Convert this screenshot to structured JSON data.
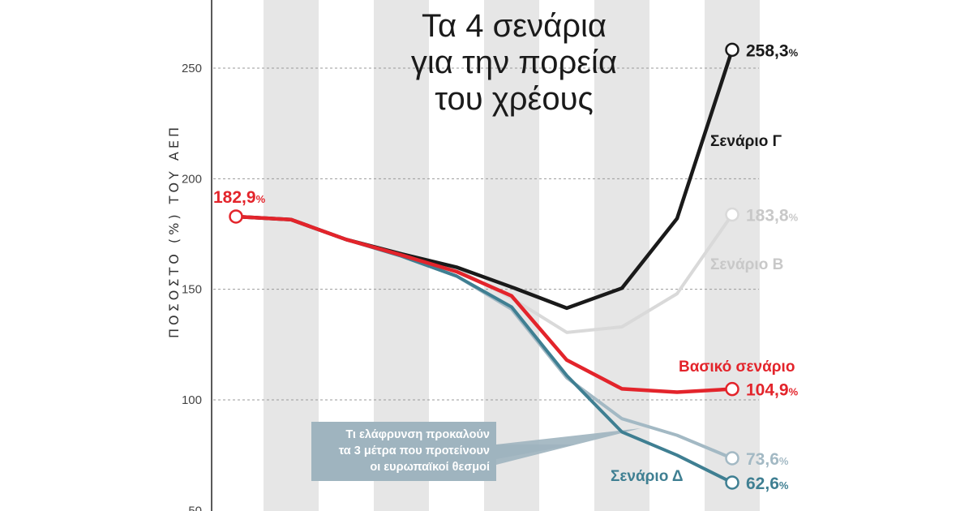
{
  "chart_data": {
    "type": "line",
    "title": [
      "Τα 4 σενάρια",
      "για την πορεία",
      "του χρέους"
    ],
    "ylabel": "ΠΟΣΟΣΤΟ (%) ΤΟΥ ΑΕΠ",
    "ylim": [
      50,
      280
    ],
    "yticks": [
      50,
      100,
      150,
      200,
      250
    ],
    "grid": true,
    "x": [
      0,
      1,
      2,
      3,
      4,
      5,
      6,
      7,
      8,
      9
    ],
    "series": [
      {
        "name": "Σενάριο Γ",
        "color": "#1a1a1a",
        "values": [
          182.9,
          181.5,
          172.5,
          166,
          160,
          151,
          141.5,
          150.5,
          182,
          258.3
        ],
        "end_label": "258,3",
        "start_label": null
      },
      {
        "name": "Σενάριο Β",
        "color": "#d9d9d9",
        "values": [
          182.9,
          181.5,
          172.5,
          166,
          159,
          146,
          130.5,
          133,
          148,
          183.8
        ],
        "end_label": "183,8",
        "start_label": null
      },
      {
        "name": "Βασικό σενάριο",
        "color": "#e3242b",
        "values": [
          182.9,
          181.5,
          172.5,
          165.5,
          158,
          147,
          118,
          105,
          103.5,
          104.9
        ],
        "end_label": "104,9",
        "start_label": "182,9"
      },
      {
        "name": "",
        "color": "#a3b9c4",
        "values": [
          182.9,
          181.5,
          172.5,
          165,
          156,
          141,
          110,
          91.5,
          84,
          73.6
        ],
        "end_label": "73,6",
        "start_label": null
      },
      {
        "name": "Σενάριο Δ",
        "color": "#3f7f92",
        "values": [
          182.9,
          181.5,
          172.5,
          165,
          156,
          142,
          111,
          85.5,
          75,
          62.6
        ],
        "end_label": "62,6",
        "start_label": null
      }
    ],
    "percent_sign": "%",
    "callout": [
      "Τι ελάφρυνση προκαλούν",
      "τα 3 μέτρα που προτείνουν",
      "οι ευρωπαϊκοί θεσμοί"
    ]
  },
  "colors": {
    "stripe": "#e6e6e6",
    "gridline": "#9a9a9a",
    "callout_bg": "#9fb4bf"
  }
}
